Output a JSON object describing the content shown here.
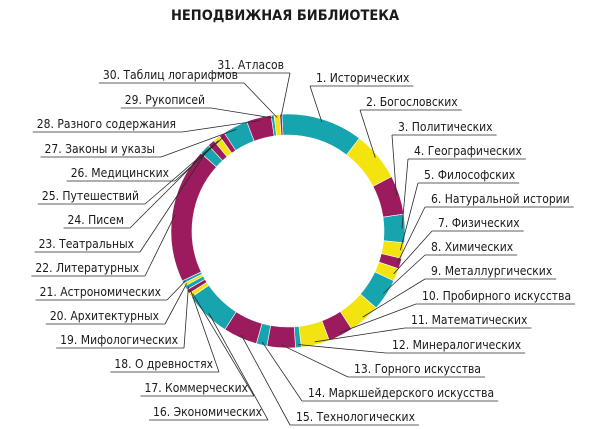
{
  "chart_data": {
    "type": "pie",
    "title": "НЕПОДВИЖНАЯ БИБЛИОТЕКА",
    "categories": [
      "1. Исторических",
      "2. Богословских",
      "3. Политических",
      "4. Географических",
      "5. Философских",
      "6. Натуральной истории",
      "7. Физических",
      "8. Химических",
      "9. Металлургических",
      "10. Пробирного искусства",
      "11. Математических",
      "12. Минералогических",
      "13. Горного искусства",
      "14. Маркшейдерского искусства",
      "15. Технологических",
      "16. Экономических",
      "17. Коммерческих",
      "18. О древностях",
      "19. Мифологических",
      "20. Архитектурных",
      "21. Астрономических",
      "22. Литературных",
      "23. Театральных",
      "24. Писем",
      "25. Путешествий",
      "26. Медицинских",
      "27. Законы и указы",
      "28. Разного содержания",
      "29. Рукописей",
      "30. Таблиц логарифмов",
      "31. Атласов"
    ],
    "values": [
      11.5,
      7.0,
      5.5,
      4.0,
      2.2,
      1.5,
      1.8,
      4.5,
      4.5,
      3.5,
      4.0,
      0.8,
      4.0,
      1.5,
      4.8,
      6.5,
      0.6,
      0.6,
      0.6,
      0.4,
      0.4,
      19.0,
      1.5,
      1.0,
      1.0,
      0.8,
      3.5,
      3.5,
      0.4,
      0.8,
      0.3
    ],
    "colors": [
      "#16a4ae",
      "#f3e40f",
      "#9c1b5e",
      "#16a4ae",
      "#f3e40f",
      "#9c1b5e",
      "#f3e40f",
      "#16a4ae",
      "#f3e40f",
      "#9c1b5e",
      "#f3e40f",
      "#16a4ae",
      "#9c1b5e",
      "#16a4ae",
      "#9c1b5e",
      "#16a4ae",
      "#f3e40f",
      "#9c1b5e",
      "#16a4ae",
      "#f3e40f",
      "#16a4ae",
      "#9c1b5e",
      "#16a4ae",
      "#9c1b5e",
      "#f3e40f",
      "#9c1b5e",
      "#16a4ae",
      "#9c1b5e",
      "#16a4ae",
      "#f3e40f",
      "#9c1b5e"
    ],
    "style": "donut"
  }
}
